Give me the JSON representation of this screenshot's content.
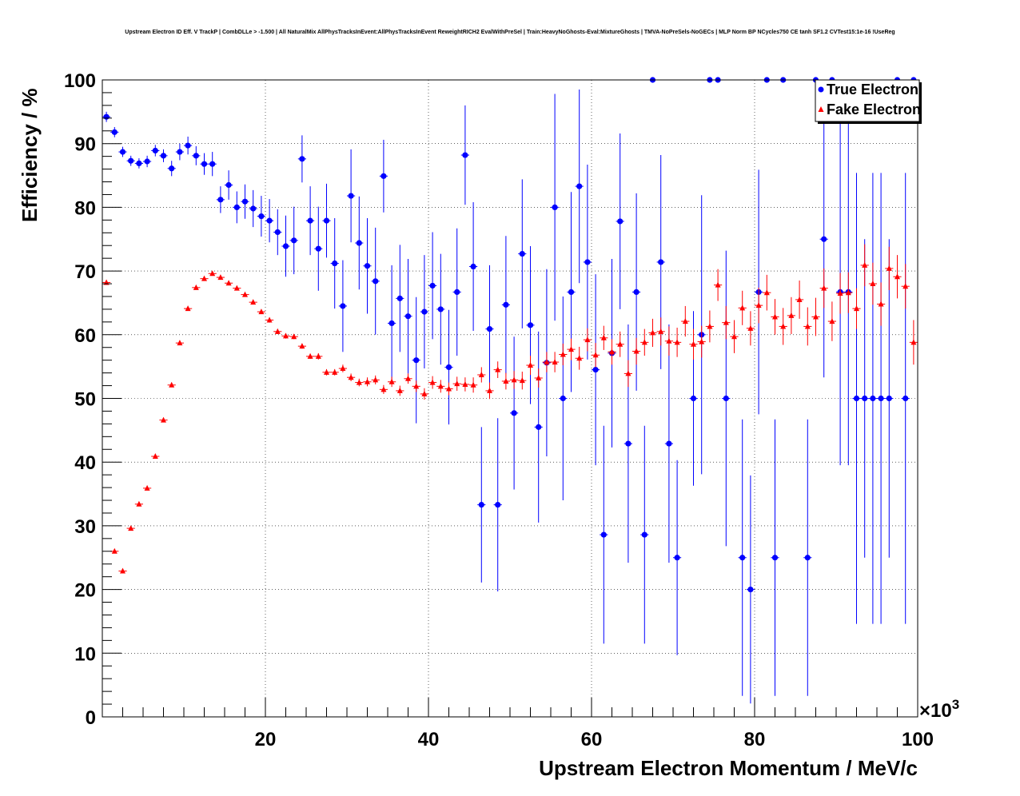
{
  "chart_data": {
    "type": "scatter",
    "title": "Upstream Electron ID Eff. V TrackP | CombDLLe > -1.500 | All NaturalMix AllPhysTracksInEvent:AllPhysTracksInEvent ReweightRICH2 EvalWithPreSel | Train:HeavyNoGhosts-Eval:MixtureGhosts | TMVA-NoPreSels-NoGECs | MLP Norm BP NCycles750 CE tanh SF1.2 CVTest15:1e-16 !UseReg",
    "xlabel": "Upstream Electron Momentum / MeV/c",
    "ylabel": "Efficiency / %",
    "x_exponent_label": "×10",
    "x_exponent_power": "3",
    "x_scale": 1000,
    "xlim": [
      0,
      100
    ],
    "ylim": [
      0,
      100
    ],
    "x_ticks": [
      20,
      40,
      60,
      80,
      100
    ],
    "x_tick_labels": [
      "20",
      "40",
      "60",
      "80",
      "100"
    ],
    "y_ticks": [
      0,
      10,
      20,
      30,
      40,
      50,
      60,
      70,
      80,
      90,
      100
    ],
    "y_tick_labels": [
      "0",
      "10",
      "20",
      "30",
      "40",
      "50",
      "60",
      "70",
      "80",
      "90",
      "100"
    ],
    "grid": true,
    "legend_position": "top-right",
    "series": [
      {
        "name": "True Electron",
        "color": "#0000ff",
        "marker": "circle",
        "x": [
          0.5,
          1.5,
          2.5,
          3.5,
          4.5,
          5.5,
          6.5,
          7.5,
          8.5,
          9.5,
          10.5,
          11.5,
          12.5,
          13.5,
          14.5,
          15.5,
          16.5,
          17.5,
          18.5,
          19.5,
          20.5,
          21.5,
          22.5,
          23.5,
          24.5,
          25.5,
          26.5,
          27.5,
          28.5,
          29.5,
          30.5,
          31.5,
          32.5,
          33.5,
          34.5,
          35.5,
          36.5,
          37.5,
          38.5,
          39.5,
          40.5,
          41.5,
          42.5,
          43.5,
          44.5,
          45.5,
          46.5,
          47.5,
          48.5,
          49.5,
          50.5,
          51.5,
          52.5,
          53.5,
          54.5,
          55.5,
          56.5,
          57.5,
          58.5,
          59.5,
          60.5,
          61.5,
          62.5,
          63.5,
          64.5,
          65.5,
          66.5,
          67.5,
          68.5,
          69.5,
          70.5,
          72.5,
          73.5,
          74.5,
          75.5,
          76.5,
          78.5,
          79.5,
          80.5,
          81.5,
          82.5,
          83.5,
          86.5,
          87.5,
          88.5,
          89.5,
          90.5,
          91.5,
          92.5,
          93.5,
          94.5,
          95.5,
          96.5,
          97.5,
          98.5,
          99.5
        ],
        "y": [
          94.2,
          91.8,
          88.7,
          87.3,
          86.9,
          87.2,
          88.9,
          88.1,
          86.1,
          88.7,
          89.7,
          88.1,
          86.8,
          86.8,
          81.2,
          83.5,
          80.0,
          80.9,
          79.8,
          78.6,
          77.9,
          76.1,
          73.9,
          74.8,
          87.6,
          77.9,
          73.5,
          77.9,
          71.2,
          64.5,
          81.8,
          74.4,
          70.8,
          68.4,
          84.9,
          61.8,
          65.7,
          62.9,
          56.0,
          63.6,
          67.7,
          64.0,
          54.9,
          66.7,
          88.2,
          70.7,
          33.3,
          60.9,
          33.3,
          64.7,
          47.7,
          72.7,
          61.5,
          45.5,
          55.6,
          80.0,
          50.0,
          66.7,
          83.3,
          71.4,
          54.5,
          28.6,
          57.1,
          77.8,
          42.9,
          66.7,
          28.6,
          100,
          71.4,
          42.9,
          25.0,
          50.0,
          60.0,
          100,
          100,
          50.0,
          25.0,
          20.0,
          66.7,
          100,
          25.0,
          100,
          25.0,
          100,
          75.0,
          100,
          66.7,
          66.7,
          50.0,
          50.0,
          50.0,
          50.0,
          50.0,
          100,
          50.0,
          100
        ],
        "err": [
          0.8,
          0.8,
          0.8,
          0.8,
          0.8,
          0.9,
          0.9,
          1.0,
          1.2,
          1.3,
          1.4,
          1.5,
          1.7,
          1.9,
          2.1,
          2.3,
          2.5,
          2.7,
          2.9,
          3.2,
          3.4,
          3.6,
          4.8,
          5.3,
          3.7,
          5.4,
          6.6,
          5.8,
          7.1,
          7.2,
          7.3,
          7.3,
          7.5,
          8.4,
          5.7,
          9.1,
          8.4,
          9.0,
          9.9,
          8.9,
          8.4,
          8.7,
          9.0,
          10.0,
          7.8,
          10.1,
          12.2,
          10.0,
          13.6,
          10.8,
          12.0,
          11.7,
          12.4,
          15.0,
          14.7,
          17.8,
          16.0,
          15.7,
          15.2,
          15.3,
          15.0,
          17.1,
          14.8,
          13.8,
          18.7,
          15.5,
          17.1,
          0,
          16.8,
          18.7,
          15.3,
          13.7,
          21.9,
          0,
          0,
          23.2,
          21.7,
          17.9,
          19.2,
          0,
          21.7,
          0,
          21.7,
          0,
          21.7,
          0,
          27.2,
          27.2,
          35.4,
          25.0,
          35.4,
          35.4,
          25.0,
          0,
          35.4,
          0
        ]
      },
      {
        "name": "Fake Electron",
        "color": "#ff0000",
        "marker": "triangle",
        "x": [
          0.5,
          1.5,
          2.5,
          3.5,
          4.5,
          5.5,
          6.5,
          7.5,
          8.5,
          9.5,
          10.5,
          11.5,
          12.5,
          13.5,
          14.5,
          15.5,
          16.5,
          17.5,
          18.5,
          19.5,
          20.5,
          21.5,
          22.5,
          23.5,
          24.5,
          25.5,
          26.5,
          27.5,
          28.5,
          29.5,
          30.5,
          31.5,
          32.5,
          33.5,
          34.5,
          35.5,
          36.5,
          37.5,
          38.5,
          39.5,
          40.5,
          41.5,
          42.5,
          43.5,
          44.5,
          45.5,
          46.5,
          47.5,
          48.5,
          49.5,
          50.5,
          51.5,
          52.5,
          53.5,
          54.5,
          55.5,
          56.5,
          57.5,
          58.5,
          59.5,
          60.5,
          61.5,
          62.5,
          63.5,
          64.5,
          65.5,
          66.5,
          67.5,
          68.5,
          69.5,
          70.5,
          71.5,
          72.5,
          73.5,
          74.5,
          75.5,
          76.5,
          77.5,
          78.5,
          79.5,
          80.5,
          81.5,
          82.5,
          83.5,
          84.5,
          85.5,
          86.5,
          87.5,
          88.5,
          89.5,
          90.5,
          91.5,
          92.5,
          93.5,
          94.5,
          95.5,
          96.5,
          97.5,
          98.5,
          99.5
        ],
        "y": [
          68.2,
          26.0,
          22.9,
          29.6,
          33.4,
          35.9,
          40.9,
          46.6,
          52.1,
          58.7,
          64.1,
          67.4,
          68.8,
          69.6,
          69.0,
          68.1,
          67.3,
          66.3,
          65.1,
          63.6,
          62.3,
          60.5,
          59.8,
          59.7,
          58.2,
          56.6,
          56.6,
          54.1,
          54.1,
          54.7,
          53.3,
          52.5,
          52.6,
          52.9,
          51.4,
          52.6,
          51.2,
          53.1,
          51.9,
          50.7,
          52.5,
          51.9,
          51.5,
          52.3,
          52.2,
          52.1,
          53.7,
          51.2,
          54.5,
          52.7,
          52.9,
          52.8,
          55.2,
          53.2,
          55.7,
          55.7,
          56.9,
          57.7,
          56.3,
          59.2,
          56.8,
          59.5,
          57.3,
          58.5,
          53.9,
          57.4,
          58.8,
          60.3,
          60.5,
          59.0,
          58.8,
          62.1,
          58.5,
          58.9,
          61.3,
          67.8,
          61.9,
          59.7,
          64.2,
          61.0,
          64.6,
          66.6,
          62.8,
          61.3,
          63.0,
          65.5,
          61.3,
          62.8,
          67.3,
          62.1,
          66.5,
          66.6,
          64.1,
          70.9,
          68.0,
          64.8,
          70.4,
          69.1,
          67.6,
          58.8
        ],
        "err": [
          0.2,
          0.3,
          0.3,
          0.3,
          0.3,
          0.3,
          0.3,
          0.3,
          0.3,
          0.3,
          0.3,
          0.3,
          0.3,
          0.3,
          0.3,
          0.3,
          0.3,
          0.3,
          0.3,
          0.3,
          0.4,
          0.4,
          0.4,
          0.4,
          0.4,
          0.4,
          0.5,
          0.5,
          0.5,
          0.6,
          0.6,
          0.6,
          0.7,
          0.7,
          0.7,
          0.8,
          0.8,
          0.8,
          0.9,
          0.9,
          1.0,
          1.0,
          1.0,
          1.1,
          1.1,
          1.2,
          1.2,
          1.3,
          1.3,
          1.3,
          1.4,
          1.4,
          1.5,
          1.5,
          1.6,
          1.6,
          1.7,
          1.7,
          1.8,
          1.8,
          1.9,
          1.9,
          2.0,
          2.0,
          2.1,
          2.1,
          2.1,
          2.2,
          2.2,
          2.3,
          2.3,
          2.4,
          2.4,
          2.5,
          2.5,
          2.5,
          2.6,
          2.6,
          2.7,
          2.7,
          2.8,
          2.8,
          2.8,
          2.9,
          2.9,
          3.0,
          3.0,
          3.0,
          3.1,
          3.1,
          3.2,
          3.2,
          3.2,
          3.3,
          3.3,
          3.4,
          3.4,
          3.4,
          3.5,
          3.5
        ]
      }
    ]
  }
}
